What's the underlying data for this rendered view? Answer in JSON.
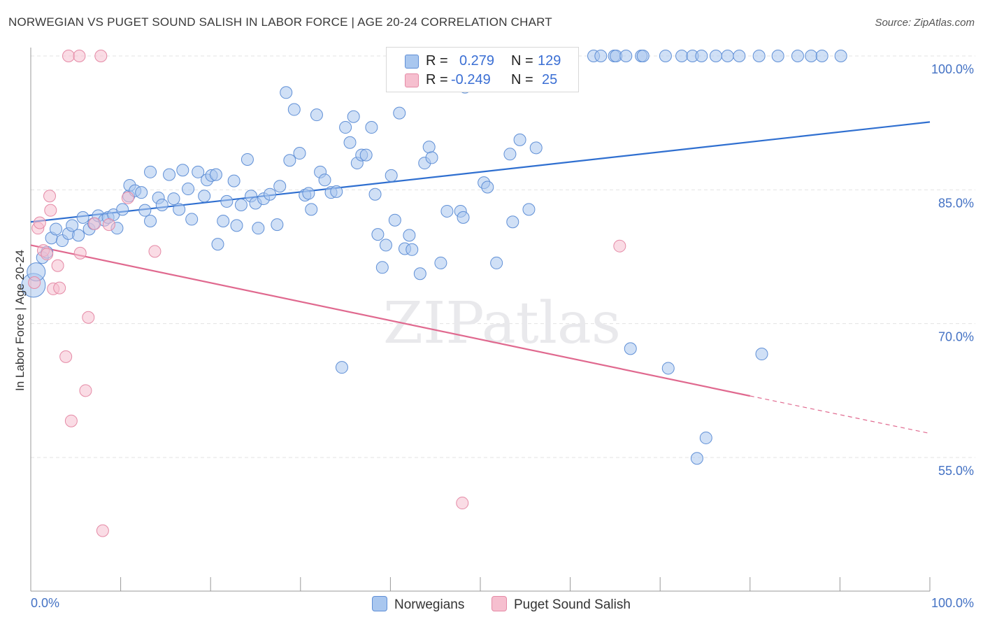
{
  "title": "NORWEGIAN VS PUGET SOUND SALISH IN LABOR FORCE | AGE 20-24 CORRELATION CHART",
  "source": "Source: ZipAtlas.com",
  "legend": {
    "row1": {
      "r_label": "R =",
      "r_value": "0.279",
      "n_label": "N =",
      "n_value": "129"
    },
    "row2": {
      "r_label": "R =",
      "r_value": "-0.249",
      "n_label": "N =",
      "n_value": "25"
    }
  },
  "bottom_legend": {
    "series1": "Norwegians",
    "series2": "Puget Sound Salish"
  },
  "colors": {
    "blue_fill": "#a9c7ef",
    "blue_stroke": "#5f8fd6",
    "blue_line": "#2f6fd0",
    "pink_fill": "#f6bfcf",
    "pink_stroke": "#e58aa6",
    "pink_line": "#e0698f",
    "tick_text": "#4472c4",
    "grid": "#e3e3e3"
  },
  "chart_data": {
    "type": "scatter",
    "title": "NORWEGIAN VS PUGET SOUND SALISH IN LABOR FORCE | AGE 20-24 CORRELATION CHART",
    "xlabel": "",
    "ylabel": "In Labor Force | Age 20-24",
    "xlim": [
      0,
      100
    ],
    "ylim": [
      40,
      101.5
    ],
    "x_tick_labels": [
      "0.0%",
      "100.0%"
    ],
    "y_ticks": [
      55,
      70,
      85,
      100
    ],
    "y_tick_labels": [
      "55.0%",
      "70.0%",
      "85.0%",
      "100.0%"
    ],
    "grid": true,
    "watermark": "ZIPatlas",
    "series": [
      {
        "name": "Norwegians",
        "color": "#a9c7ef",
        "trend": {
          "x": [
            0,
            100
          ],
          "y": [
            81.4,
            92.6
          ]
        },
        "points": [
          [
            0.3,
            74.3
          ],
          [
            0.6,
            75.8
          ],
          [
            1.3,
            77.4
          ],
          [
            1.8,
            78.0
          ],
          [
            2.3,
            79.6
          ],
          [
            2.8,
            80.6
          ],
          [
            3.5,
            79.3
          ],
          [
            4.2,
            80.1
          ],
          [
            4.6,
            81.0
          ],
          [
            5.3,
            79.9
          ],
          [
            5.8,
            81.9
          ],
          [
            6.5,
            80.6
          ],
          [
            7.0,
            81.2
          ],
          [
            7.5,
            82.1
          ],
          [
            8.2,
            81.6
          ],
          [
            8.6,
            81.9
          ],
          [
            9.2,
            82.2
          ],
          [
            9.6,
            80.7
          ],
          [
            10.2,
            82.8
          ],
          [
            10.9,
            84.3
          ],
          [
            11.0,
            85.5
          ],
          [
            11.6,
            84.9
          ],
          [
            12.3,
            84.7
          ],
          [
            12.7,
            82.7
          ],
          [
            13.3,
            81.5
          ],
          [
            13.3,
            87.0
          ],
          [
            14.2,
            84.1
          ],
          [
            14.6,
            83.3
          ],
          [
            15.4,
            86.7
          ],
          [
            15.9,
            84.0
          ],
          [
            16.5,
            82.8
          ],
          [
            16.9,
            87.2
          ],
          [
            17.5,
            85.1
          ],
          [
            17.9,
            81.7
          ],
          [
            18.6,
            87.0
          ],
          [
            19.3,
            84.3
          ],
          [
            19.6,
            86.1
          ],
          [
            20.1,
            86.6
          ],
          [
            20.6,
            86.7
          ],
          [
            20.8,
            78.9
          ],
          [
            21.4,
            81.5
          ],
          [
            21.8,
            83.7
          ],
          [
            22.6,
            86.0
          ],
          [
            22.9,
            81.0
          ],
          [
            23.4,
            83.3
          ],
          [
            24.1,
            88.4
          ],
          [
            24.5,
            84.3
          ],
          [
            25.0,
            83.5
          ],
          [
            25.3,
            80.7
          ],
          [
            25.9,
            84.0
          ],
          [
            26.6,
            84.5
          ],
          [
            27.4,
            81.1
          ],
          [
            27.7,
            85.4
          ],
          [
            28.4,
            95.9
          ],
          [
            28.8,
            88.3
          ],
          [
            29.3,
            94.0
          ],
          [
            29.9,
            89.1
          ],
          [
            30.5,
            84.4
          ],
          [
            30.9,
            84.6
          ],
          [
            31.2,
            82.8
          ],
          [
            31.8,
            93.4
          ],
          [
            32.2,
            87.0
          ],
          [
            32.7,
            86.1
          ],
          [
            33.4,
            84.7
          ],
          [
            34.0,
            84.8
          ],
          [
            34.6,
            65.1
          ],
          [
            35.0,
            92.0
          ],
          [
            35.5,
            90.3
          ],
          [
            35.9,
            93.2
          ],
          [
            36.3,
            88.0
          ],
          [
            36.8,
            88.9
          ],
          [
            37.3,
            88.9
          ],
          [
            37.9,
            92.0
          ],
          [
            38.3,
            84.5
          ],
          [
            38.6,
            80.0
          ],
          [
            39.1,
            76.3
          ],
          [
            39.5,
            78.8
          ],
          [
            40.1,
            86.6
          ],
          [
            40.5,
            81.6
          ],
          [
            41.0,
            93.6
          ],
          [
            41.6,
            78.4
          ],
          [
            42.1,
            79.9
          ],
          [
            42.4,
            78.3
          ],
          [
            43.3,
            75.6
          ],
          [
            43.8,
            88.0
          ],
          [
            44.3,
            89.8
          ],
          [
            44.6,
            88.6
          ],
          [
            45.6,
            76.8
          ],
          [
            46.3,
            82.6
          ],
          [
            47.8,
            82.6
          ],
          [
            48.1,
            81.9
          ],
          [
            47.4,
            100
          ],
          [
            48.3,
            96.5
          ],
          [
            50.4,
            85.8
          ],
          [
            50.8,
            85.3
          ],
          [
            51.8,
            76.8
          ],
          [
            53.3,
            89.0
          ],
          [
            53.6,
            81.4
          ],
          [
            54.4,
            90.6
          ],
          [
            55.4,
            82.8
          ],
          [
            56.2,
            89.7
          ],
          [
            57.4,
            100
          ],
          [
            59.8,
            100
          ],
          [
            62.6,
            100
          ],
          [
            63.4,
            100
          ],
          [
            64.9,
            100
          ],
          [
            65.1,
            100
          ],
          [
            66.2,
            100
          ],
          [
            66.7,
            67.2
          ],
          [
            67.9,
            100
          ],
          [
            68.1,
            100
          ],
          [
            70.6,
            100
          ],
          [
            70.9,
            65.0
          ],
          [
            72.4,
            100
          ],
          [
            73.6,
            100
          ],
          [
            74.6,
            100
          ],
          [
            74.1,
            54.9
          ],
          [
            76.2,
            100
          ],
          [
            75.1,
            57.2
          ],
          [
            77.5,
            100
          ],
          [
            78.8,
            100
          ],
          [
            81.0,
            100
          ],
          [
            83.1,
            100
          ],
          [
            85.3,
            100
          ],
          [
            81.3,
            66.6
          ],
          [
            86.8,
            100
          ],
          [
            88.0,
            100
          ],
          [
            90.1,
            100
          ]
        ]
      },
      {
        "name": "Puget Sound Salish",
        "color": "#f6bfcf",
        "trend": {
          "x": [
            0,
            80
          ],
          "y": [
            78.8,
            61.9
          ]
        },
        "trend_dashed": {
          "x": [
            80,
            100
          ],
          "y": [
            61.9,
            57.7
          ]
        },
        "points": [
          [
            0.4,
            74.6
          ],
          [
            0.8,
            80.7
          ],
          [
            1.0,
            81.3
          ],
          [
            1.4,
            78.2
          ],
          [
            1.8,
            77.8
          ],
          [
            2.1,
            84.3
          ],
          [
            2.2,
            82.7
          ],
          [
            2.5,
            73.9
          ],
          [
            3.0,
            76.5
          ],
          [
            3.2,
            74.0
          ],
          [
            3.9,
            66.3
          ],
          [
            4.5,
            59.1
          ],
          [
            4.2,
            100
          ],
          [
            5.4,
            100
          ],
          [
            5.5,
            77.9
          ],
          [
            6.1,
            62.5
          ],
          [
            6.4,
            70.7
          ],
          [
            7.1,
            81.2
          ],
          [
            7.8,
            100
          ],
          [
            8.0,
            46.8
          ],
          [
            8.7,
            81.1
          ],
          [
            10.8,
            84.1
          ],
          [
            13.8,
            78.1
          ],
          [
            48.0,
            49.9
          ],
          [
            65.5,
            78.7
          ]
        ]
      }
    ]
  }
}
